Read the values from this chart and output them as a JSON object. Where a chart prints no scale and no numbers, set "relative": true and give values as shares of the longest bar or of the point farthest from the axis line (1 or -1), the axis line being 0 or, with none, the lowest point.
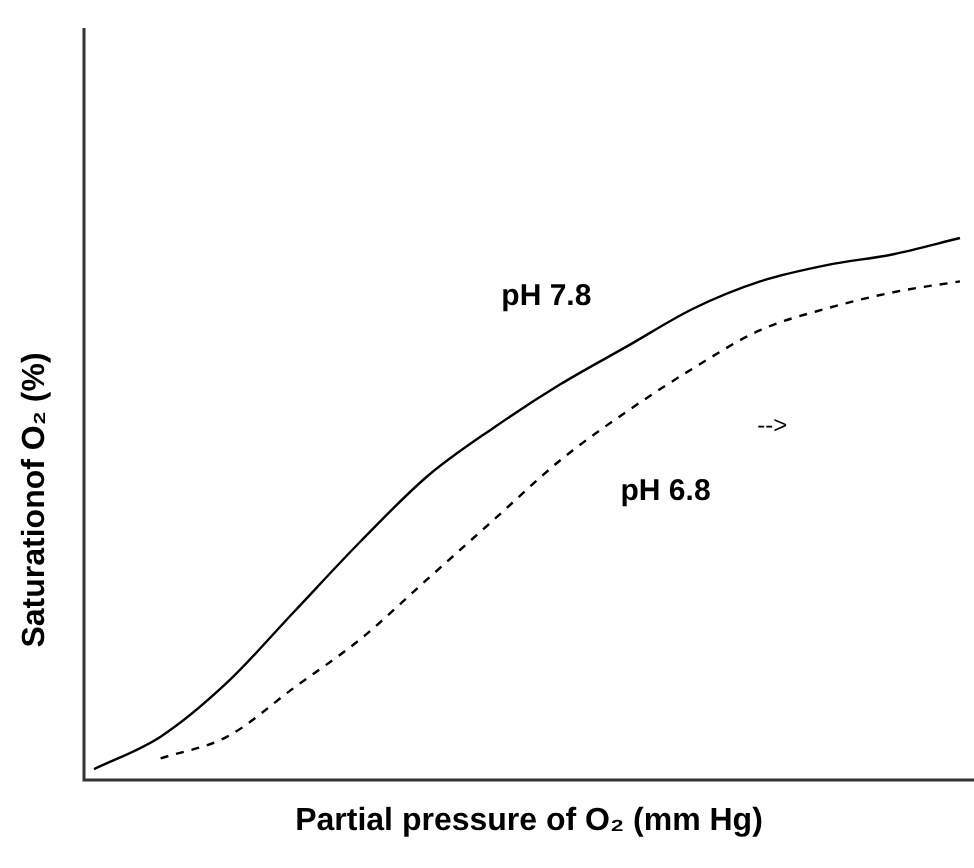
{
  "chart_data": {
    "type": "line",
    "relative": true,
    "xlabel": "Partial pressure of O₂ (mm Hg)",
    "ylabel": "Saturationof O₂ (%)",
    "categories": [
      null,
      null,
      null,
      null,
      null,
      null,
      null,
      null,
      null,
      null,
      null,
      null,
      null,
      null
    ],
    "legend": false,
    "marker": "none",
    "annotations": [
      "-->"
    ],
    "series": [
      {
        "name": "pH 7.8",
        "color": "#000000",
        "line_style": "solid",
        "values": [
          0.02,
          0.08,
          0.18,
          0.31,
          0.44,
          0.56,
          0.65,
          0.73,
          0.8,
          0.87,
          0.92,
          0.95,
          0.97,
          1.0
        ]
      },
      {
        "name": "pH 6.8",
        "color": "#000000",
        "line_style": "dashed",
        "values": [
          null,
          0.04,
          0.08,
          0.17,
          0.26,
          0.37,
          0.48,
          0.59,
          0.68,
          0.76,
          0.83,
          0.87,
          0.9,
          0.92
        ]
      }
    ]
  }
}
